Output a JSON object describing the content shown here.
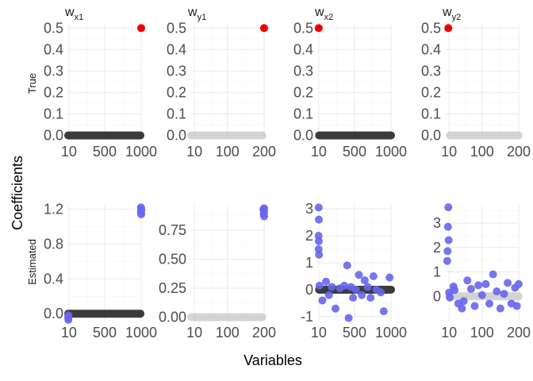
{
  "chart_data": {
    "type": "scatter",
    "xlabel": "Variables",
    "ylabel": "Coefficients",
    "row_labels": [
      "True",
      "Estimated"
    ],
    "columns": [
      {
        "title_base": "w",
        "title_sub": "x1"
      },
      {
        "title_base": "w",
        "title_sub": "y1"
      },
      {
        "title_base": "w",
        "title_sub": "x2"
      },
      {
        "title_base": "w",
        "title_sub": "y2"
      }
    ],
    "colors": {
      "red": "#ee0000",
      "blue": "#6666ee",
      "dark": "#1a1a1a",
      "grey": "#b3b3b3"
    },
    "panels": [
      {
        "id": "true-wx1",
        "row": 0,
        "col": 0,
        "xlim": [
          1,
          1000
        ],
        "ylim": [
          -0.02,
          0.52
        ],
        "xticks": [
          10,
          500,
          1000
        ],
        "xtick_labels": [
          "10",
          "500",
          "1000"
        ],
        "yticks": [
          0,
          0.1,
          0.2,
          0.3,
          0.4,
          0.5
        ],
        "ytick_labels": [
          "0.0",
          "0.1",
          "0.2",
          "0.3",
          "0.4",
          "0.5"
        ],
        "band": {
          "color": "dark",
          "y": 0,
          "from": 1,
          "to": 990
        },
        "points": [
          {
            "x": 1000,
            "y": 0.5,
            "color": "red"
          }
        ]
      },
      {
        "id": "true-wy1",
        "row": 0,
        "col": 1,
        "xlim": [
          1,
          200
        ],
        "ylim": [
          -0.02,
          0.52
        ],
        "xticks": [
          10,
          100,
          200
        ],
        "xtick_labels": [
          "10",
          "100",
          "200"
        ],
        "yticks": [
          0,
          0.1,
          0.2,
          0.3,
          0.4,
          0.5
        ],
        "ytick_labels": [
          "0.0",
          "0.1",
          "0.2",
          "0.3",
          "0.4",
          "0.5"
        ],
        "band": {
          "color": "grey",
          "y": 0,
          "from": 1,
          "to": 195
        },
        "points": [
          {
            "x": 200,
            "y": 0.5,
            "color": "red"
          }
        ]
      },
      {
        "id": "true-wx2",
        "row": 0,
        "col": 2,
        "xlim": [
          1,
          1000
        ],
        "ylim": [
          -0.02,
          0.52
        ],
        "xticks": [
          10,
          500,
          1000
        ],
        "xtick_labels": [
          "10",
          "500",
          "1000"
        ],
        "yticks": [
          0,
          0.1,
          0.2,
          0.3,
          0.4,
          0.5
        ],
        "ytick_labels": [
          "0.0",
          "0.1",
          "0.2",
          "0.3",
          "0.4",
          "0.5"
        ],
        "band": {
          "color": "dark",
          "y": 0,
          "from": 15,
          "to": 1000
        },
        "points": [
          {
            "x": 10,
            "y": 0.5,
            "color": "red"
          }
        ]
      },
      {
        "id": "true-wy2",
        "row": 0,
        "col": 3,
        "xlim": [
          1,
          200
        ],
        "ylim": [
          -0.02,
          0.52
        ],
        "xticks": [
          10,
          100,
          200
        ],
        "xtick_labels": [
          "10",
          "100",
          "200"
        ],
        "yticks": [
          0,
          0.1,
          0.2,
          0.3,
          0.4,
          0.5
        ],
        "ytick_labels": [
          "0.0",
          "0.1",
          "0.2",
          "0.3",
          "0.4",
          "0.5"
        ],
        "band": {
          "color": "grey",
          "y": 0,
          "from": 12,
          "to": 200
        },
        "points": [
          {
            "x": 8,
            "y": 0.5,
            "color": "red"
          }
        ]
      },
      {
        "id": "est-wx1",
        "row": 1,
        "col": 0,
        "xlim": [
          1,
          1000
        ],
        "ylim": [
          -0.08,
          1.25
        ],
        "xticks": [
          10,
          500,
          1000
        ],
        "xtick_labels": [
          "10",
          "500",
          "1000"
        ],
        "yticks": [
          0,
          0.4,
          0.8,
          1.2
        ],
        "ytick_labels": [
          "0.0",
          "0.4",
          "0.8",
          "1.2"
        ],
        "band": {
          "color": "dark",
          "y": 0,
          "from": 1,
          "to": 990
        },
        "points": [
          {
            "x": 1,
            "y": -0.05,
            "color": "blue"
          },
          {
            "x": 3,
            "y": -0.07,
            "color": "blue"
          },
          {
            "x": 2,
            "y": -0.03,
            "color": "blue"
          },
          {
            "x": 4,
            "y": -0.02,
            "color": "blue"
          },
          {
            "x": 1000,
            "y": 1.14,
            "color": "blue"
          },
          {
            "x": 998,
            "y": 1.16,
            "color": "blue"
          },
          {
            "x": 999,
            "y": 1.18,
            "color": "blue"
          },
          {
            "x": 1000,
            "y": 1.2,
            "color": "blue"
          },
          {
            "x": 997,
            "y": 1.22,
            "color": "blue"
          },
          {
            "x": 1000,
            "y": 1.19,
            "color": "blue"
          }
        ]
      },
      {
        "id": "est-wy1",
        "row": 1,
        "col": 1,
        "xlim": [
          1,
          200
        ],
        "ylim": [
          -0.03,
          0.97
        ],
        "xticks": [
          10,
          100,
          200
        ],
        "xtick_labels": [
          "10",
          "100",
          "200"
        ],
        "yticks": [
          0,
          0.25,
          0.5,
          0.75
        ],
        "ytick_labels": [
          "0.00",
          "0.25",
          "0.50",
          "0.75"
        ],
        "band": {
          "color": "grey",
          "y": 0,
          "from": 1,
          "to": 195
        },
        "points": [
          {
            "x": 200,
            "y": 0.87,
            "color": "blue"
          },
          {
            "x": 199,
            "y": 0.89,
            "color": "blue"
          },
          {
            "x": 200,
            "y": 0.91,
            "color": "blue"
          },
          {
            "x": 198,
            "y": 0.93,
            "color": "blue"
          },
          {
            "x": 200,
            "y": 0.94,
            "color": "blue"
          }
        ]
      },
      {
        "id": "est-wx2",
        "row": 1,
        "col": 2,
        "xlim": [
          1,
          1000
        ],
        "ylim": [
          -1.15,
          3.15
        ],
        "xticks": [
          10,
          500,
          1000
        ],
        "xtick_labels": [
          "10",
          "500",
          "1000"
        ],
        "yticks": [
          -1,
          0,
          1,
          2,
          3
        ],
        "ytick_labels": [
          "-1",
          "0",
          "1",
          "2",
          "3"
        ],
        "band": {
          "color": "dark",
          "y": 0,
          "from": 15,
          "to": 1000
        },
        "points": [
          {
            "x": 10,
            "y": 3.05,
            "color": "blue"
          },
          {
            "x": 12,
            "y": 2.6,
            "color": "blue"
          },
          {
            "x": 8,
            "y": 2.0,
            "color": "blue"
          },
          {
            "x": 11,
            "y": 1.8,
            "color": "blue"
          },
          {
            "x": 9,
            "y": 1.5,
            "color": "blue"
          },
          {
            "x": 14,
            "y": 1.3,
            "color": "blue"
          },
          {
            "x": 20,
            "y": 0.15,
            "color": "blue"
          },
          {
            "x": 60,
            "y": -0.4,
            "color": "blue"
          },
          {
            "x": 110,
            "y": 0.3,
            "color": "blue"
          },
          {
            "x": 150,
            "y": -0.2,
            "color": "blue"
          },
          {
            "x": 190,
            "y": 0.1,
            "color": "blue"
          },
          {
            "x": 240,
            "y": -0.7,
            "color": "blue"
          },
          {
            "x": 300,
            "y": 0.05,
            "color": "blue"
          },
          {
            "x": 360,
            "y": 0.15,
            "color": "blue"
          },
          {
            "x": 400,
            "y": 0.9,
            "color": "blue"
          },
          {
            "x": 420,
            "y": -1.05,
            "color": "blue"
          },
          {
            "x": 450,
            "y": 0.1,
            "color": "blue"
          },
          {
            "x": 480,
            "y": -0.3,
            "color": "blue"
          },
          {
            "x": 520,
            "y": 0.0,
            "color": "blue"
          },
          {
            "x": 560,
            "y": 0.55,
            "color": "blue"
          },
          {
            "x": 600,
            "y": -0.2,
            "color": "blue"
          },
          {
            "x": 640,
            "y": 0.35,
            "color": "blue"
          },
          {
            "x": 680,
            "y": 0.1,
            "color": "blue"
          },
          {
            "x": 720,
            "y": -0.3,
            "color": "blue"
          },
          {
            "x": 760,
            "y": 0.5,
            "color": "blue"
          },
          {
            "x": 800,
            "y": 0.0,
            "color": "blue"
          },
          {
            "x": 860,
            "y": -0.1,
            "color": "blue"
          },
          {
            "x": 900,
            "y": -0.8,
            "color": "blue"
          },
          {
            "x": 980,
            "y": 0.45,
            "color": "blue"
          }
        ]
      },
      {
        "id": "est-wy2",
        "row": 1,
        "col": 3,
        "xlim": [
          1,
          200
        ],
        "ylim": [
          -1.0,
          3.75
        ],
        "xticks": [
          10,
          100,
          200
        ],
        "xtick_labels": [
          "10",
          "100",
          "200"
        ],
        "yticks": [
          0,
          1,
          2,
          3
        ],
        "ytick_labels": [
          "0",
          "1",
          "2",
          "3"
        ],
        "band": {
          "color": "grey",
          "y": 0,
          "from": 12,
          "to": 200
        },
        "points": [
          {
            "x": 8,
            "y": 3.65,
            "color": "blue"
          },
          {
            "x": 7,
            "y": 2.85,
            "color": "blue"
          },
          {
            "x": 9,
            "y": 2.3,
            "color": "blue"
          },
          {
            "x": 6,
            "y": 1.85,
            "color": "blue"
          },
          {
            "x": 5,
            "y": 1.45,
            "color": "blue"
          },
          {
            "x": 10,
            "y": 0.15,
            "color": "blue"
          },
          {
            "x": 12,
            "y": -0.05,
            "color": "blue"
          },
          {
            "x": 22,
            "y": 0.4,
            "color": "blue"
          },
          {
            "x": 25,
            "y": 0.25,
            "color": "blue"
          },
          {
            "x": 35,
            "y": -0.3,
            "color": "blue"
          },
          {
            "x": 45,
            "y": -0.5,
            "color": "blue"
          },
          {
            "x": 50,
            "y": -0.2,
            "color": "blue"
          },
          {
            "x": 60,
            "y": 0.65,
            "color": "blue"
          },
          {
            "x": 70,
            "y": 0.3,
            "color": "blue"
          },
          {
            "x": 80,
            "y": -0.4,
            "color": "blue"
          },
          {
            "x": 90,
            "y": 0.45,
            "color": "blue"
          },
          {
            "x": 100,
            "y": 0.05,
            "color": "blue"
          },
          {
            "x": 110,
            "y": 0.5,
            "color": "blue"
          },
          {
            "x": 120,
            "y": -0.3,
            "color": "blue"
          },
          {
            "x": 130,
            "y": 0.9,
            "color": "blue"
          },
          {
            "x": 140,
            "y": 0.2,
            "color": "blue"
          },
          {
            "x": 150,
            "y": -0.5,
            "color": "blue"
          },
          {
            "x": 160,
            "y": 0.1,
            "color": "blue"
          },
          {
            "x": 170,
            "y": 0.55,
            "color": "blue"
          },
          {
            "x": 180,
            "y": -0.3,
            "color": "blue"
          },
          {
            "x": 190,
            "y": 0.35,
            "color": "blue"
          },
          {
            "x": 195,
            "y": -0.4,
            "color": "blue"
          },
          {
            "x": 200,
            "y": 0.5,
            "color": "blue"
          }
        ]
      }
    ]
  }
}
